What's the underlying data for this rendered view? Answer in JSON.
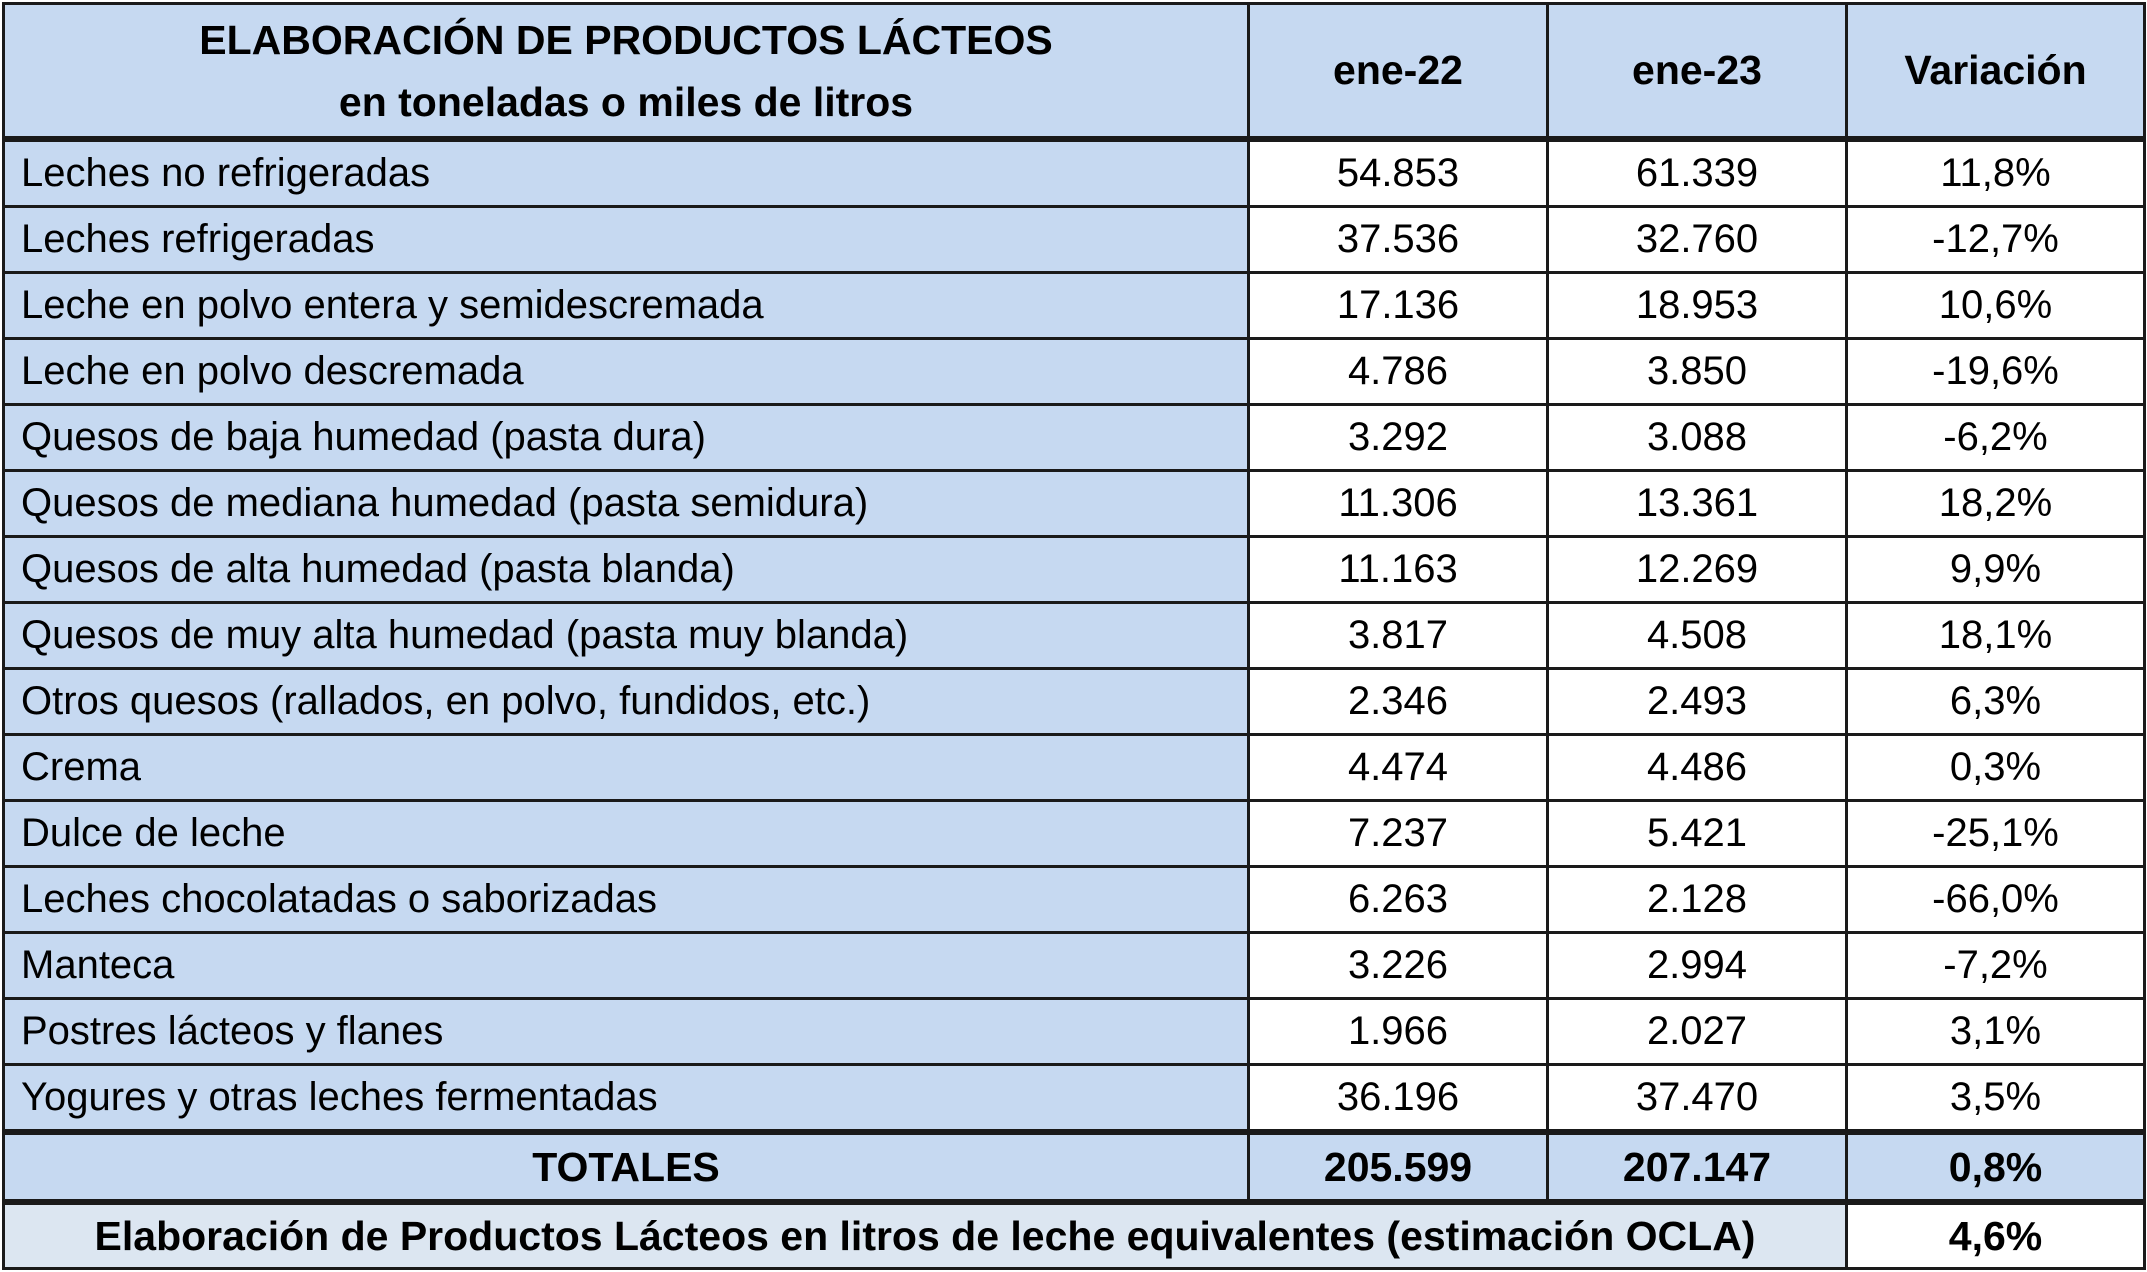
{
  "header": {
    "title_line1": "ELABORACIÓN DE PRODUCTOS LÁCTEOS",
    "title_line2": "en toneladas o miles de litros",
    "col1": "ene-22",
    "col2": "ene-23",
    "col3": "Variación"
  },
  "rows": [
    {
      "label": "Leches no refrigeradas",
      "v1": "54.853",
      "v2": "61.339",
      "var": "11,8%"
    },
    {
      "label": "Leches refrigeradas",
      "v1": "37.536",
      "v2": "32.760",
      "var": "-12,7%"
    },
    {
      "label": "Leche en polvo entera y semidescremada",
      "v1": "17.136",
      "v2": "18.953",
      "var": "10,6%"
    },
    {
      "label": "Leche en polvo descremada",
      "v1": "4.786",
      "v2": "3.850",
      "var": "-19,6%"
    },
    {
      "label": "Quesos de baja humedad (pasta dura)",
      "v1": "3.292",
      "v2": "3.088",
      "var": "-6,2%"
    },
    {
      "label": "Quesos de mediana humedad (pasta semidura)",
      "v1": "11.306",
      "v2": "13.361",
      "var": "18,2%"
    },
    {
      "label": "Quesos de alta humedad (pasta blanda)",
      "v1": "11.163",
      "v2": "12.269",
      "var": "9,9%"
    },
    {
      "label": "Quesos de muy alta humedad (pasta muy blanda)",
      "v1": "3.817",
      "v2": "4.508",
      "var": "18,1%"
    },
    {
      "label": "Otros quesos (rallados, en polvo, fundidos, etc.)",
      "v1": "2.346",
      "v2": "2.493",
      "var": "6,3%"
    },
    {
      "label": "Crema",
      "v1": "4.474",
      "v2": "4.486",
      "var": "0,3%"
    },
    {
      "label": "Dulce de leche",
      "v1": "7.237",
      "v2": "5.421",
      "var": "-25,1%"
    },
    {
      "label": "Leches chocolatadas o saborizadas",
      "v1": "6.263",
      "v2": "2.128",
      "var": "-66,0%"
    },
    {
      "label": "Manteca",
      "v1": "3.226",
      "v2": "2.994",
      "var": "-7,2%"
    },
    {
      "label": "Postres lácteos y flanes",
      "v1": "1.966",
      "v2": "2.027",
      "var": "3,1%"
    },
    {
      "label": "Yogures y otras leches fermentadas",
      "v1": "36.196",
      "v2": "37.470",
      "var": "3,5%"
    }
  ],
  "totals": {
    "label": "TOTALES",
    "v1": "205.599",
    "v2": "207.147",
    "var": "0,8%"
  },
  "footer": {
    "label": "Elaboración de Productos Lácteos en litros de leche equivalentes (estimación OCLA)",
    "value": "4,6%"
  },
  "colors": {
    "header_fill": "#c6d9f1",
    "footer_fill": "#dce6f1",
    "cell_fill": "#ffffff",
    "border": "#1a1a1a"
  }
}
